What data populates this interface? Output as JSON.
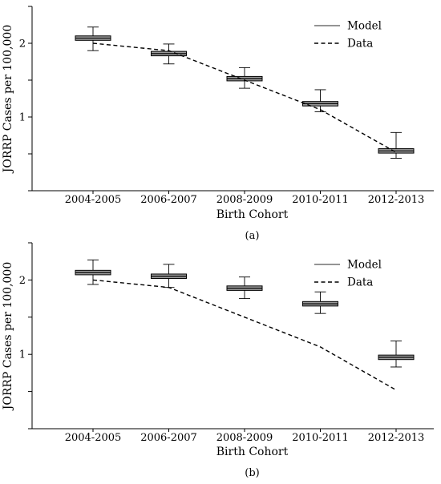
{
  "chart_data": [
    {
      "type": "box",
      "panel_label": "(a)",
      "xlabel": "Birth Cohort",
      "ylabel": "JORRP Cases per 100,000",
      "categories": [
        "2004-2005",
        "2006-2007",
        "2008-2009",
        "2010-2011",
        "2012-2013"
      ],
      "ylim": [
        0,
        2.5
      ],
      "yticks": [
        0,
        0.5,
        1,
        1.5,
        2,
        2.5
      ],
      "yticklabels": [
        "",
        "",
        "1",
        "",
        "2",
        ""
      ],
      "legend": {
        "position": "top-right",
        "entries": [
          {
            "label": "Model",
            "style": "solid"
          },
          {
            "label": "Data",
            "style": "dashed"
          }
        ]
      },
      "series": [
        {
          "name": "Model",
          "kind": "boxplot",
          "boxes": [
            {
              "whisker_low": 1.9,
              "q1": 2.04,
              "median": 2.07,
              "q3": 2.1,
              "whisker_high": 2.22
            },
            {
              "whisker_low": 1.72,
              "q1": 1.83,
              "median": 1.86,
              "q3": 1.89,
              "whisker_high": 1.99
            },
            {
              "whisker_low": 1.39,
              "q1": 1.49,
              "median": 1.52,
              "q3": 1.55,
              "whisker_high": 1.67
            },
            {
              "whisker_low": 1.07,
              "q1": 1.15,
              "median": 1.18,
              "q3": 1.21,
              "whisker_high": 1.37
            },
            {
              "whisker_low": 0.44,
              "q1": 0.51,
              "median": 0.54,
              "q3": 0.57,
              "whisker_high": 0.79
            }
          ]
        },
        {
          "name": "Data",
          "kind": "line",
          "style": "dashed",
          "values": [
            2.0,
            1.9,
            1.5,
            1.1,
            0.52
          ]
        }
      ]
    },
    {
      "type": "box",
      "panel_label": "(b)",
      "xlabel": "Birth Cohort",
      "ylabel": "JORRP Cases per 100,000",
      "categories": [
        "2004-2005",
        "2006-2007",
        "2008-2009",
        "2010-2011",
        "2012-2013"
      ],
      "ylim": [
        0,
        2.5
      ],
      "yticks": [
        0,
        0.5,
        1,
        1.5,
        2,
        2.5
      ],
      "yticklabels": [
        "",
        "",
        "1",
        "",
        "2",
        ""
      ],
      "legend": {
        "position": "top-right",
        "entries": [
          {
            "label": "Model",
            "style": "solid"
          },
          {
            "label": "Data",
            "style": "dashed"
          }
        ]
      },
      "series": [
        {
          "name": "Model",
          "kind": "boxplot",
          "boxes": [
            {
              "whisker_low": 1.94,
              "q1": 2.07,
              "median": 2.1,
              "q3": 2.13,
              "whisker_high": 2.27
            },
            {
              "whisker_low": 1.9,
              "q1": 2.02,
              "median": 2.05,
              "q3": 2.08,
              "whisker_high": 2.21
            },
            {
              "whisker_low": 1.75,
              "q1": 1.86,
              "median": 1.89,
              "q3": 1.92,
              "whisker_high": 2.04
            },
            {
              "whisker_low": 1.55,
              "q1": 1.65,
              "median": 1.68,
              "q3": 1.71,
              "whisker_high": 1.84
            },
            {
              "whisker_low": 0.83,
              "q1": 0.93,
              "median": 0.96,
              "q3": 0.99,
              "whisker_high": 1.18
            }
          ]
        },
        {
          "name": "Data",
          "kind": "line",
          "style": "dashed",
          "values": [
            2.0,
            1.9,
            1.5,
            1.1,
            0.52
          ]
        }
      ]
    }
  ]
}
